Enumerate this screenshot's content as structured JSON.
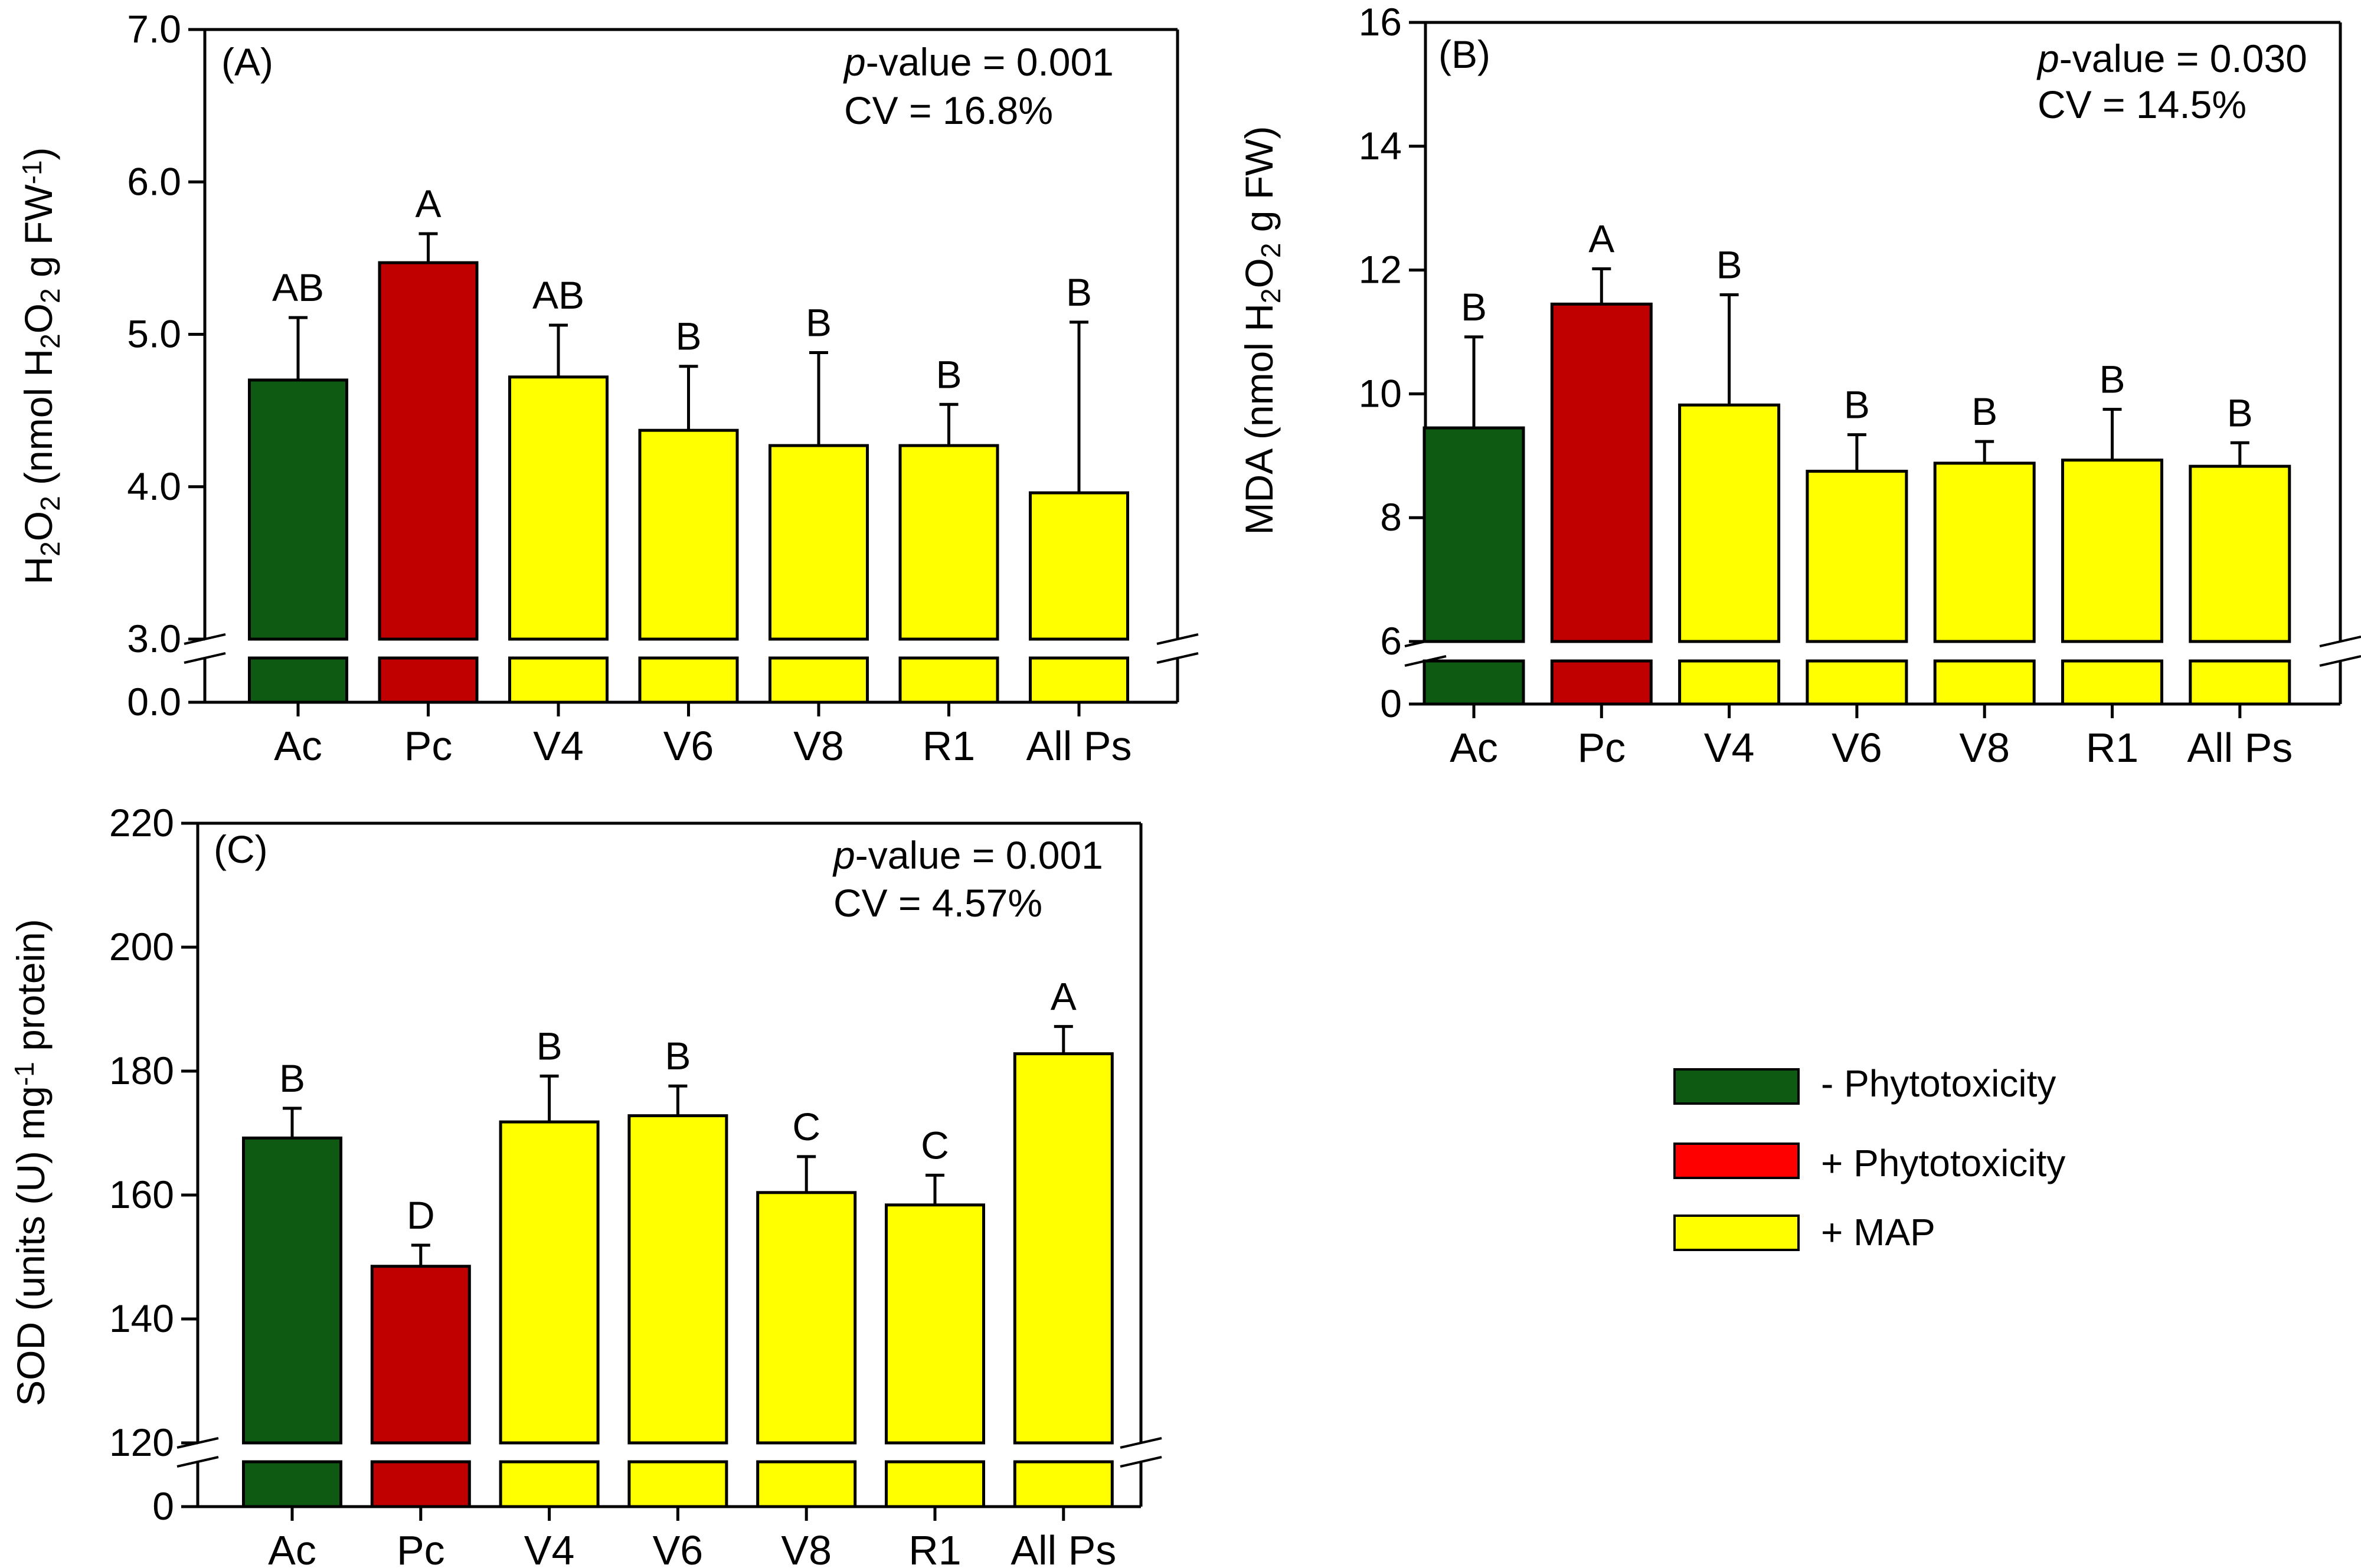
{
  "colors": {
    "green": "#0E5A12",
    "red": "#C00000",
    "yellow": "#FFFF00",
    "legend_red": "#FF0000"
  },
  "legend": {
    "items": [
      {
        "label": "- Phytotoxicity",
        "color": "#0E5A12"
      },
      {
        "label": "+ Phytotoxicity",
        "color": "#FF0000"
      },
      {
        "label": "+ MAP",
        "color": "#FFFF00"
      }
    ]
  },
  "chart_data": [
    {
      "type": "bar",
      "panel_label": "(A)",
      "stat_p_prefix": "p",
      "stat_p_rest": "-value = 0.001",
      "stat_cv": "CV = 16.8%",
      "ylabel_parts": [
        "H",
        "2",
        "O",
        "2",
        " (nmol H",
        "2",
        "O",
        "2",
        " g FW",
        "-1",
        ")"
      ],
      "categories": [
        "Ac",
        "Pc",
        "V4",
        "V6",
        "V8",
        "R1",
        "All Ps"
      ],
      "values": [
        4.7,
        5.47,
        4.72,
        4.37,
        4.27,
        4.27,
        3.96
      ],
      "errors": [
        0.41,
        0.19,
        0.34,
        0.42,
        0.61,
        0.27,
        1.12
      ],
      "letters": [
        "AB",
        "A",
        "AB",
        "B",
        "B",
        "B",
        "B"
      ],
      "bar_colors": [
        "green",
        "red",
        "yellow",
        "yellow",
        "yellow",
        "yellow",
        "yellow"
      ],
      "ylim": [
        3.0,
        7.0
      ],
      "yticks": [
        3.0,
        4.0,
        5.0,
        6.0,
        7.0
      ],
      "ytick_labels": [
        "3.0",
        "4.0",
        "5.0",
        "6.0",
        "7.0"
      ],
      "break_label": "0.0"
    },
    {
      "type": "bar",
      "panel_label": "(B)",
      "stat_p_prefix": "p",
      "stat_p_rest": "-value = 0.030",
      "stat_cv": "CV = 14.5%",
      "ylabel_parts": [
        "MDA (nmol H",
        "2",
        "O",
        "2",
        " g FW)"
      ],
      "categories": [
        "Ac",
        "Pc",
        "V4",
        "V6",
        "V8",
        "R1",
        "All Ps"
      ],
      "values": [
        9.45,
        11.45,
        9.82,
        8.75,
        8.88,
        8.93,
        8.83
      ],
      "errors": [
        1.47,
        0.57,
        1.78,
        0.59,
        0.35,
        0.82,
        0.38
      ],
      "letters": [
        "B",
        "A",
        "B",
        "B",
        "B",
        "B",
        "B"
      ],
      "bar_colors": [
        "green",
        "red",
        "yellow",
        "yellow",
        "yellow",
        "yellow",
        "yellow"
      ],
      "ylim": [
        6,
        16
      ],
      "yticks": [
        6,
        8,
        10,
        12,
        14,
        16
      ],
      "ytick_labels": [
        "6",
        "8",
        "10",
        "12",
        "14",
        "16"
      ],
      "break_label": "0"
    },
    {
      "type": "bar",
      "panel_label": "(C)",
      "stat_p_prefix": "p",
      "stat_p_rest": "-value = 0.001",
      "stat_cv": "CV = 4.57%",
      "ylabel_parts": [
        "SOD (units (U) mg",
        "-1",
        " protein)"
      ],
      "categories": [
        "Ac",
        "Pc",
        "V4",
        "V6",
        "V8",
        "R1",
        "All Ps"
      ],
      "values": [
        169.2,
        148.5,
        171.8,
        172.8,
        160.4,
        158.4,
        182.8
      ],
      "errors": [
        4.8,
        3.4,
        7.4,
        4.8,
        5.8,
        4.8,
        4.4
      ],
      "letters": [
        "B",
        "D",
        "B",
        "B",
        "C",
        "C",
        "A"
      ],
      "bar_colors": [
        "green",
        "red",
        "yellow",
        "yellow",
        "yellow",
        "yellow",
        "yellow"
      ],
      "ylim": [
        120,
        220
      ],
      "yticks": [
        120,
        140,
        160,
        180,
        200,
        220
      ],
      "ytick_labels": [
        "120",
        "140",
        "160",
        "180",
        "200",
        "220"
      ],
      "break_label": "0"
    }
  ]
}
